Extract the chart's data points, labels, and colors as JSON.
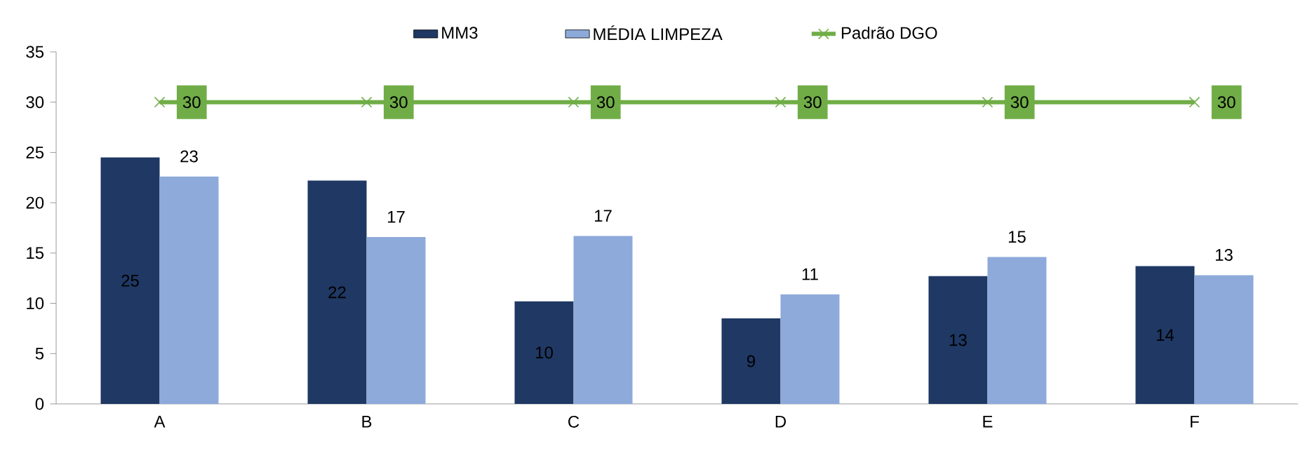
{
  "chart_data": {
    "type": "bar",
    "categories": [
      "A",
      "B",
      "C",
      "D",
      "E",
      "F"
    ],
    "series": [
      {
        "name": "MM3",
        "color": "#1f3864",
        "values": [
          24.5,
          22.2,
          10.2,
          8.5,
          12.7,
          13.7
        ],
        "value_labels": [
          "25",
          "22",
          "10",
          "9",
          "13",
          "14"
        ]
      },
      {
        "name": "MÉDIA LIMPEZA",
        "color": "#8eaadb",
        "values": [
          22.6,
          16.6,
          16.7,
          10.9,
          14.6,
          12.8
        ],
        "value_labels": [
          "23",
          "17",
          "17",
          "11",
          "15",
          "13"
        ]
      },
      {
        "name": "Padrão DGO",
        "type": "line",
        "color": "#70ad47",
        "marker": "cross",
        "values": [
          30,
          30,
          30,
          30,
          30,
          30
        ],
        "value_labels": [
          "30",
          "30",
          "30",
          "30",
          "30",
          "30"
        ]
      }
    ],
    "ylim": [
      0,
      35
    ],
    "yticks": [
      0,
      5,
      10,
      15,
      20,
      25,
      30,
      35
    ],
    "legend": "top",
    "grid": false
  }
}
